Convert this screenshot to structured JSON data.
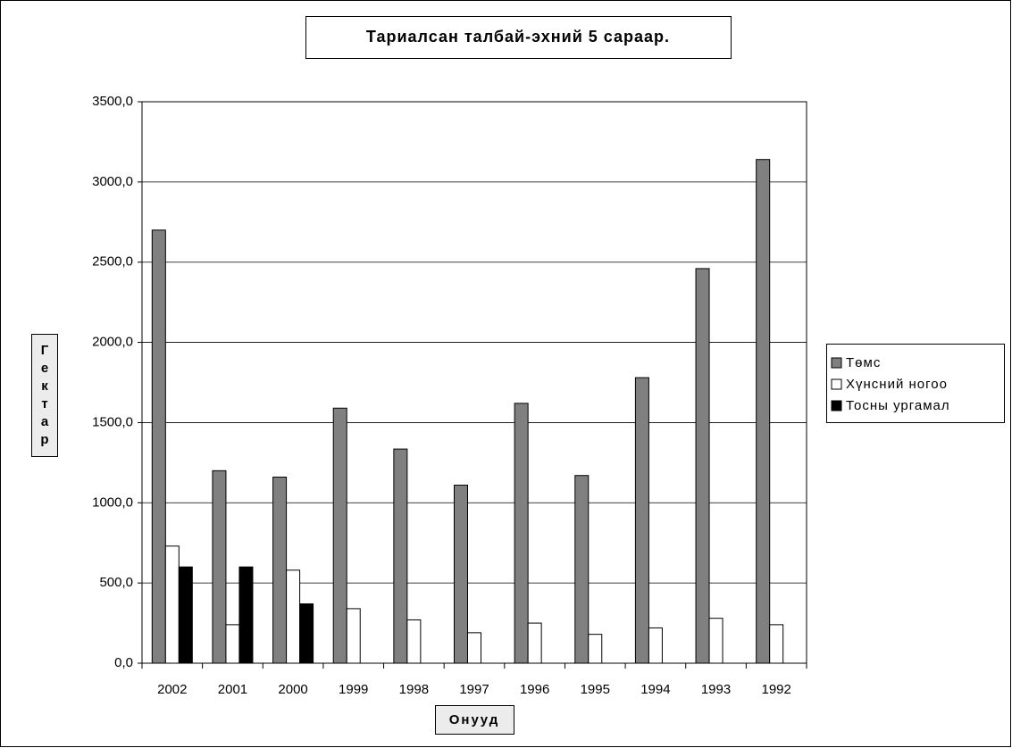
{
  "chart_data": {
    "type": "bar",
    "title": "Тариалсан талбай-эхний 5 сараар.",
    "y_label": "Гектар",
    "x_label": "Онууд",
    "categories": [
      "2002",
      "2001",
      "2000",
      "1999",
      "1998",
      "1997",
      "1996",
      "1995",
      "1994",
      "1993",
      "1992"
    ],
    "series": [
      {
        "name": "Төмс",
        "color": "#808080",
        "values": [
          2700,
          1200,
          1160,
          1590,
          1335,
          1110,
          1620,
          1170,
          1780,
          2460,
          3140
        ]
      },
      {
        "name": "Хүнсний ногоо",
        "color": "#ffffff",
        "values": [
          730,
          240,
          580,
          340,
          270,
          190,
          250,
          180,
          220,
          280,
          240
        ]
      },
      {
        "name": "Тосны ургамал",
        "color": "#000000",
        "values": [
          600,
          600,
          370,
          null,
          null,
          null,
          null,
          null,
          null,
          null,
          null
        ]
      }
    ],
    "ylim": [
      0,
      3500
    ],
    "yticks": [
      {
        "value": 0,
        "label": "0,0"
      },
      {
        "value": 500,
        "label": "500,0"
      },
      {
        "value": 1000,
        "label": "1000,0"
      },
      {
        "value": 1500,
        "label": "1500,0"
      },
      {
        "value": 2000,
        "label": "2000,0"
      },
      {
        "value": 2500,
        "label": "2500,0"
      },
      {
        "value": 3000,
        "label": "3000,0"
      },
      {
        "value": 3500,
        "label": "3500,0"
      }
    ],
    "grid": true,
    "legend": "right"
  }
}
